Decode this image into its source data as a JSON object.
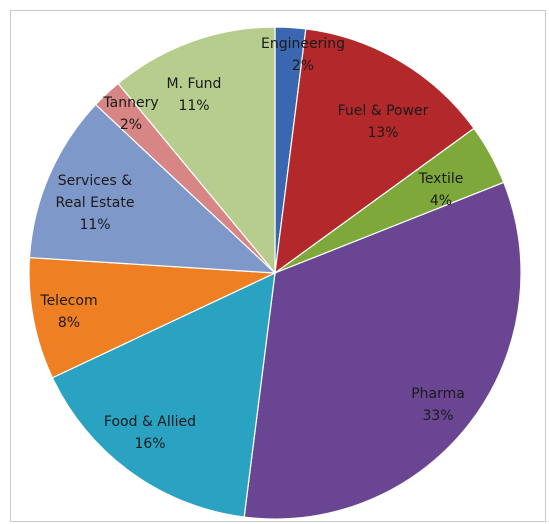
{
  "chart_data": {
    "type": "pie",
    "title": "",
    "legend": "none",
    "slices": [
      {
        "label": "Engineering",
        "value": 2,
        "value_label": "2%",
        "color": "#3a67b0"
      },
      {
        "label": "Fuel & Power",
        "value": 13,
        "value_label": "13%",
        "color": "#b3282b"
      },
      {
        "label": "Textile",
        "value": 4,
        "value_label": "4%",
        "color": "#7fa83a"
      },
      {
        "label": "Pharma",
        "value": 33,
        "value_label": "33%",
        "color": "#6a4591"
      },
      {
        "label": "Food & Allied",
        "value": 16,
        "value_label": "16%",
        "color": "#2aa3c2"
      },
      {
        "label": "Telecom",
        "value": 8,
        "value_label": "8%",
        "color": "#ee7f22"
      },
      {
        "label": "Services &\nReal Estate",
        "value": 11,
        "value_label": "11%",
        "color": "#7e98c9"
      },
      {
        "label": "Tannery",
        "value": 2,
        "value_label": "2%",
        "color": "#d78585"
      },
      {
        "label": "M. Fund",
        "value": 11,
        "value_label": "11%",
        "color": "#b7cd8d"
      }
    ]
  }
}
